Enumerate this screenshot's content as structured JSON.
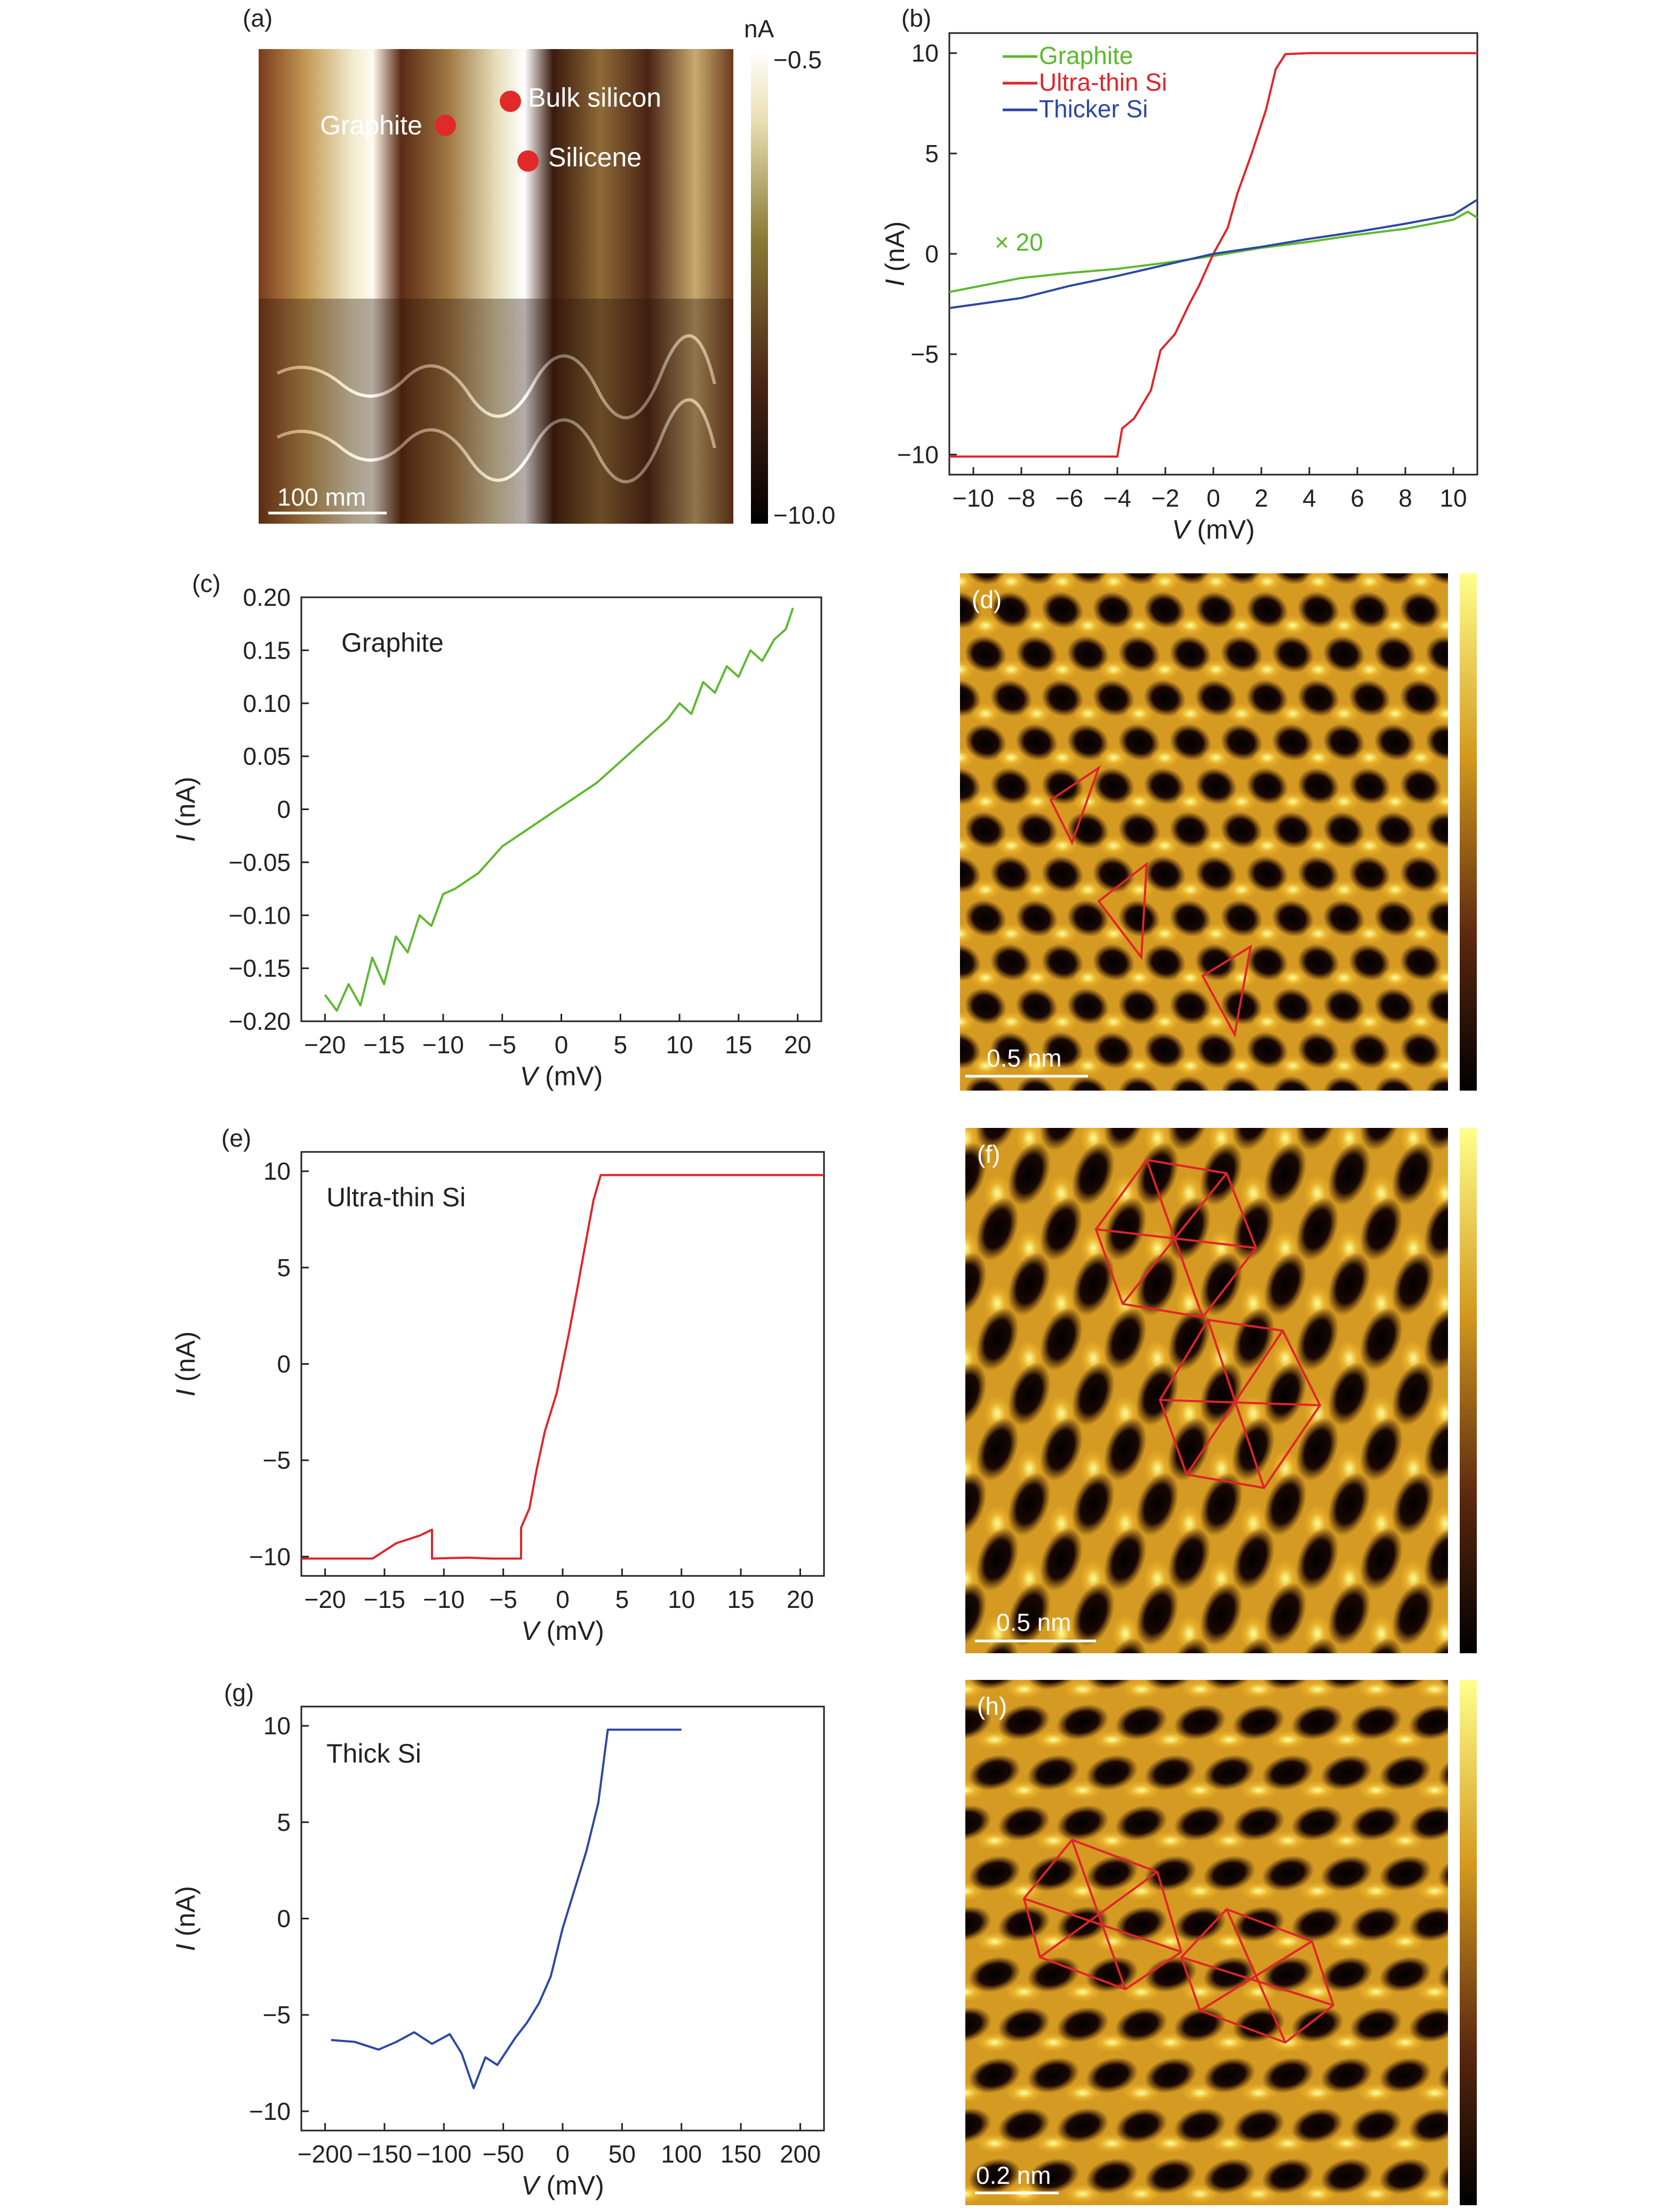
{
  "panels": {
    "a": {
      "label": "(a)",
      "colorbar_unit": "nA",
      "colorbar_max": "−0.5",
      "colorbar_min": "−10.0",
      "markers": [
        "Graphite",
        "Bulk silicon",
        "Silicene"
      ],
      "scale_bar": "100 mm"
    },
    "b": {
      "label": "(b)",
      "multiplier_note": "× 20"
    },
    "c": {
      "label": "(c)",
      "annotation": "Graphite"
    },
    "d": {
      "label": "(d)",
      "scale_bar": "0.5 nm"
    },
    "e": {
      "label": "(e)",
      "annotation": "Ultra-thin Si"
    },
    "f": {
      "label": "(f)",
      "scale_bar": "0.5 nm"
    },
    "g": {
      "label": "(g)",
      "annotation": "Thick Si"
    },
    "h": {
      "label": "(h)",
      "scale_bar": "0.2 nm"
    }
  },
  "colors": {
    "graphite": "#5cb82e",
    "ultra_thin_si": "#e0242a",
    "thicker_si": "#2c47a3"
  },
  "chart_data": [
    {
      "id": "b",
      "type": "line",
      "xlabel_var": "V",
      "xlabel_unit": "(mV)",
      "ylabel_var": "I",
      "ylabel_unit": "(nA)",
      "xlim": [
        -11,
        11
      ],
      "ylim": [
        -11,
        11
      ],
      "xticks": [
        -10,
        -8,
        -6,
        -4,
        -2,
        0,
        2,
        4,
        6,
        8,
        10
      ],
      "yticks": [
        -10,
        -5,
        0,
        5,
        10
      ],
      "legend": "top-left",
      "series": [
        {
          "name": "Graphite",
          "color": "#5cb82e",
          "x": [
            -11,
            -8,
            -6,
            -4,
            -2,
            0,
            2,
            4,
            6,
            8,
            10,
            10.6,
            11
          ],
          "y": [
            -1.9,
            -1.2,
            -0.95,
            -0.75,
            -0.45,
            -0.1,
            0.3,
            0.6,
            0.95,
            1.25,
            1.7,
            2.1,
            1.8
          ]
        },
        {
          "name": "Ultra-thin Si",
          "color": "#e0242a",
          "x": [
            -11,
            -6,
            -4,
            -3.8,
            -3.3,
            -2.6,
            -2.2,
            -1.6,
            -1.0,
            -0.6,
            0,
            0.6,
            1.0,
            1.6,
            2.2,
            2.6,
            3.0,
            4,
            11
          ],
          "y": [
            -10.1,
            -10.1,
            -10.1,
            -8.7,
            -8.2,
            -6.8,
            -4.8,
            -4.0,
            -2.5,
            -1.6,
            0,
            1.3,
            3.0,
            5.0,
            7.2,
            9.2,
            9.95,
            10,
            10
          ]
        },
        {
          "name": "Thicker Si",
          "color": "#2c47a3",
          "x": [
            -11,
            -8,
            -6,
            -4,
            -2,
            0,
            2,
            4,
            6,
            8,
            10,
            11
          ],
          "y": [
            -2.7,
            -2.2,
            -1.6,
            -1.1,
            -0.55,
            0,
            0.35,
            0.75,
            1.1,
            1.5,
            1.95,
            2.7
          ]
        }
      ]
    },
    {
      "id": "c",
      "type": "line",
      "xlabel_var": "V",
      "xlabel_unit": "(mV)",
      "ylabel_var": "I",
      "ylabel_unit": "(nA)",
      "xlim": [
        -22,
        22
      ],
      "ylim": [
        -0.2,
        0.2
      ],
      "xticks": [
        -20,
        -15,
        -10,
        -5,
        0,
        5,
        10,
        15,
        20
      ],
      "yticks": [
        -0.2,
        -0.15,
        -0.1,
        -0.05,
        0,
        0.05,
        0.1,
        0.15,
        0.2
      ],
      "yticklabels": [
        "−0.20",
        "−0.15",
        "−0.10",
        "−0.05",
        "0",
        "0.05",
        "0.10",
        "0.15",
        "0.20"
      ],
      "series": [
        {
          "name": "Graphite",
          "color": "#5cb82e",
          "x": [
            -20,
            -19,
            -18,
            -17,
            -16,
            -15,
            -14,
            -13,
            -12,
            -11,
            -10,
            -9,
            -7,
            -5,
            -3,
            -1,
            1,
            3,
            5,
            7,
            9,
            10,
            11,
            12,
            13,
            14,
            15,
            16,
            17,
            18,
            19,
            19.6
          ],
          "y": [
            -0.175,
            -0.19,
            -0.165,
            -0.185,
            -0.14,
            -0.165,
            -0.12,
            -0.135,
            -0.1,
            -0.11,
            -0.08,
            -0.075,
            -0.06,
            -0.035,
            -0.02,
            -0.005,
            0.01,
            0.025,
            0.045,
            0.065,
            0.085,
            0.1,
            0.09,
            0.12,
            0.11,
            0.135,
            0.125,
            0.15,
            0.14,
            0.16,
            0.17,
            0.19
          ]
        }
      ]
    },
    {
      "id": "e",
      "type": "line",
      "xlabel_var": "V",
      "xlabel_unit": "(mV)",
      "ylabel_var": "I",
      "ylabel_unit": "(nA)",
      "xlim": [
        -22,
        22
      ],
      "ylim": [
        -11,
        11
      ],
      "xticks": [
        -20,
        -15,
        -10,
        -5,
        0,
        5,
        10,
        15,
        20
      ],
      "yticks": [
        -10,
        -5,
        0,
        5,
        10
      ],
      "series": [
        {
          "name": "Ultra-thin Si",
          "color": "#e0242a",
          "x": [
            -22,
            -16,
            -14,
            -12,
            -11,
            -11,
            -8,
            -6,
            -3.5,
            -3.5,
            -2.8,
            -2.2,
            -1.5,
            -0.5,
            0.5,
            1.2,
            2,
            2.6,
            3.2,
            10,
            22
          ],
          "y": [
            -10.1,
            -10.1,
            -9.3,
            -8.9,
            -8.6,
            -10.1,
            -10.05,
            -10.1,
            -10.1,
            -8.5,
            -7.5,
            -5.5,
            -3.5,
            -1.5,
            1.5,
            3.8,
            6.5,
            8.5,
            9.8,
            9.8,
            9.8
          ]
        }
      ]
    },
    {
      "id": "g",
      "type": "line",
      "xlabel_var": "V",
      "xlabel_unit": "(mV)",
      "ylabel_var": "I",
      "ylabel_unit": "(nA)",
      "xlim": [
        -220,
        220
      ],
      "ylim": [
        -11,
        11
      ],
      "xticks": [
        -200,
        -150,
        -100,
        -50,
        0,
        50,
        100,
        150,
        200
      ],
      "yticks": [
        -10,
        -5,
        0,
        5,
        10
      ],
      "series": [
        {
          "name": "Thick Si",
          "color": "#2c47a3",
          "x": [
            -195,
            -175,
            -155,
            -140,
            -125,
            -110,
            -95,
            -85,
            -75,
            -65,
            -55,
            -40,
            -30,
            -20,
            -10,
            0,
            10,
            20,
            30,
            38,
            50,
            100
          ],
          "y": [
            -6.3,
            -6.4,
            -6.8,
            -6.4,
            -5.9,
            -6.5,
            -6.0,
            -7.0,
            -8.8,
            -7.2,
            -7.6,
            -6.2,
            -5.4,
            -4.4,
            -3.0,
            -0.5,
            1.5,
            3.5,
            6.0,
            9.8,
            9.8,
            9.8
          ]
        }
      ]
    }
  ]
}
